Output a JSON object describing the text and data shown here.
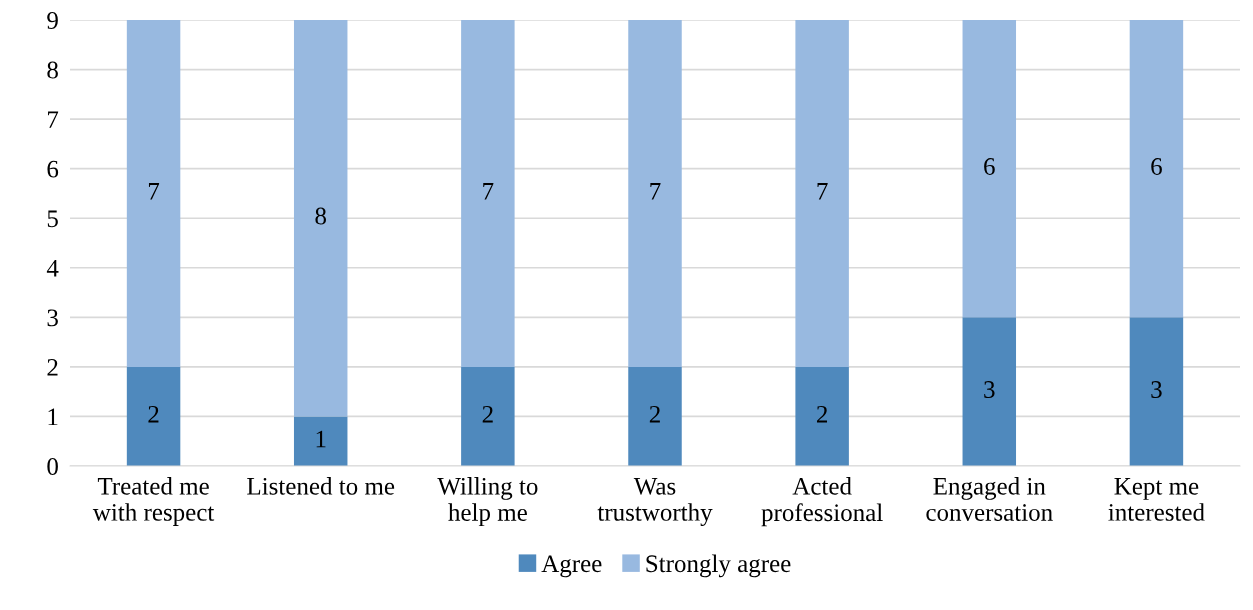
{
  "chart_data": {
    "type": "bar",
    "stacked": true,
    "categories": [
      "Treated me\nwith respect",
      "Listened to me",
      "Willing to\nhelp me",
      "Was\ntrustworthy",
      "Acted\nprofessional",
      "Engaged in\nconversation",
      "Kept me\ninterested"
    ],
    "series": [
      {
        "name": "Agree",
        "color": "#4f89bd",
        "values": [
          2,
          1,
          2,
          2,
          2,
          3,
          3
        ]
      },
      {
        "name": "Strongly agree",
        "color": "#98b9e0",
        "values": [
          7,
          8,
          7,
          7,
          7,
          6,
          6
        ]
      }
    ],
    "ylim": [
      0,
      9
    ],
    "yticks": [
      0,
      1,
      2,
      3,
      4,
      5,
      6,
      7,
      8,
      9
    ],
    "grid": "y",
    "legend": "bottom",
    "data_labels": true
  }
}
